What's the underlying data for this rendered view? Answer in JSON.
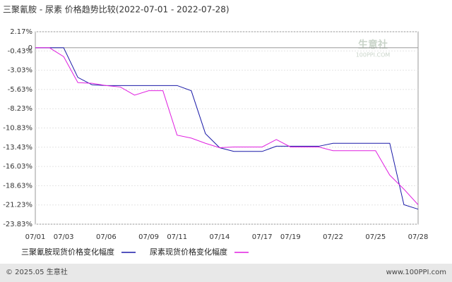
{
  "chart_data": {
    "type": "line",
    "title": "三聚氰胺 - 尿素 价格趋势比较(2022-07-01 - 2022-07-28)",
    "watermark": "生意社",
    "watermark_sub": "100PPI.COM",
    "categories": [
      "07/01",
      null,
      "07/03",
      null,
      null,
      "07/06",
      null,
      null,
      "07/09",
      null,
      "07/11",
      null,
      null,
      "07/14",
      null,
      null,
      "07/17",
      null,
      "07/19",
      null,
      null,
      "07/22",
      null,
      null,
      "07/25",
      null,
      null,
      "07/28"
    ],
    "series": [
      {
        "name": "三聚氰胺现货价格变化幅度",
        "color": "#1a1aa8",
        "values": [
          0,
          0,
          0,
          -4.0,
          -5.0,
          -5.1,
          -5.1,
          -5.1,
          -5.1,
          -5.1,
          -5.1,
          -5.8,
          -11.6,
          -13.5,
          -14.0,
          -14.0,
          -14.0,
          -13.3,
          -13.3,
          -13.3,
          -13.3,
          -12.9,
          -12.9,
          -12.9,
          -12.9,
          -12.9,
          -21.2,
          -21.8
        ]
      },
      {
        "name": "尿素现货价格变化幅度",
        "color": "#e020e0",
        "values": [
          0,
          0,
          -1.2,
          -4.7,
          -4.8,
          -5.1,
          -5.3,
          -6.4,
          -5.8,
          -5.8,
          -11.8,
          -12.2,
          -12.9,
          -13.5,
          -13.4,
          -13.4,
          -13.4,
          -12.4,
          -13.4,
          -13.4,
          -13.4,
          -13.9,
          -13.9,
          -13.9,
          -13.9,
          -17.2,
          -19.1,
          -21.2
        ]
      }
    ],
    "ylim": [
      -23.83,
      2.17
    ],
    "yticks": [
      {
        "value": 2.17,
        "label": "2.17%"
      },
      0,
      {
        "value": -0.43,
        "label": "-0.43%"
      },
      {
        "value": -3.03,
        "label": "-3.03%"
      },
      {
        "value": -5.63,
        "label": "-5.63%"
      },
      {
        "value": -8.23,
        "label": "-8.23%"
      },
      {
        "value": -10.83,
        "label": "-10.83%"
      },
      {
        "value": -13.43,
        "label": "-13.43%"
      },
      {
        "value": -16.03,
        "label": "-16.03%"
      },
      {
        "value": -18.63,
        "label": "-18.63%"
      },
      {
        "value": -21.23,
        "label": "-21.23%"
      },
      {
        "value": -23.83,
        "label": "-23.83%"
      }
    ],
    "grid": true,
    "footer_left": "© 2025.05 生意社",
    "footer_right": "www.100PPI.com"
  }
}
